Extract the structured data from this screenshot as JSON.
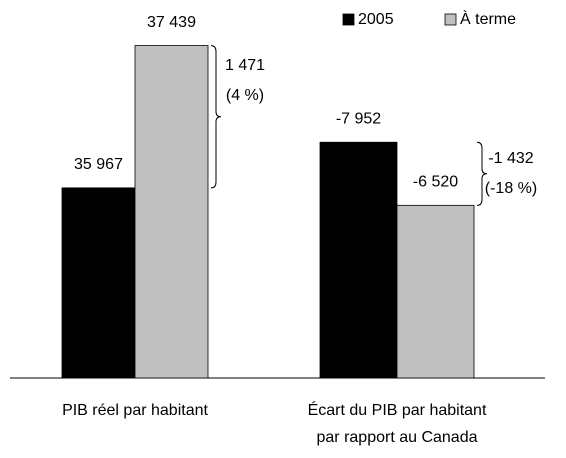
{
  "chart_data": {
    "type": "bar",
    "categories": [
      [
        "PIB réel par habitant"
      ],
      [
        "Écart du PIB par habitant",
        "par rapport au Canada"
      ]
    ],
    "series": [
      {
        "name": "2005",
        "color": "#000000",
        "values": [
          35967,
          -7952
        ],
        "value_labels": [
          "35 967",
          "-7 952"
        ]
      },
      {
        "name": "À terme",
        "color": "#c0c0c0",
        "values": [
          37439,
          -6520
        ],
        "value_labels": [
          "37 439",
          "-6 520"
        ]
      }
    ],
    "ylim": [
      [
        34000,
        37600
      ],
      [
        -2600,
        -10500
      ]
    ],
    "annotations": [
      [
        "1 471",
        "(4 %)"
      ],
      [
        "-1 432",
        "(-18 %)"
      ]
    ],
    "legend": "top-right"
  }
}
